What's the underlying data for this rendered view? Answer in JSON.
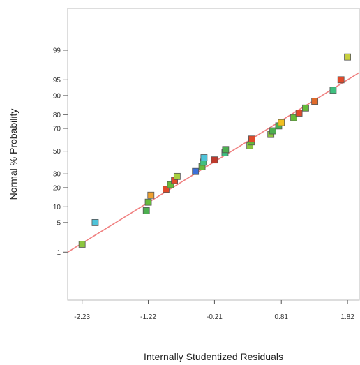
{
  "chart_data": {
    "type": "scatter",
    "title": "",
    "xlabel": "Internally Studentized Residuals",
    "ylabel": "Normal % Probability",
    "y_scale": "normal-probability",
    "grid": false,
    "xlim": [
      -2.45,
      2.0
    ],
    "ylim": [
      0.03,
      99.95
    ],
    "x_ticks": [
      -2.23,
      -1.22,
      -0.21,
      0.81,
      1.82
    ],
    "x_tick_labels": [
      "-2.23",
      "-1.22",
      "-0.21",
      "0.81",
      "1.82"
    ],
    "y_ticks": [
      1,
      5,
      10,
      20,
      30,
      50,
      70,
      80,
      90,
      95,
      99
    ],
    "y_tick_labels": [
      "1",
      "5",
      "10",
      "20",
      "30",
      "50",
      "70",
      "80",
      "90",
      "95",
      "99"
    ],
    "reference_line": {
      "color": "#f08080",
      "points": [
        [
          -2.45,
          1.0
        ],
        [
          2.0,
          96.5
        ]
      ]
    },
    "points": [
      {
        "x": -2.23,
        "y": 1.6,
        "color": "#8cc63f"
      },
      {
        "x": -2.03,
        "y": 5.0,
        "color": "#4fc3d9"
      },
      {
        "x": -1.25,
        "y": 8.5,
        "color": "#4caf50"
      },
      {
        "x": -1.22,
        "y": 12.0,
        "color": "#66bb3a"
      },
      {
        "x": -1.18,
        "y": 15.5,
        "color": "#f0a030"
      },
      {
        "x": -0.95,
        "y": 19.0,
        "color": "#e04a2a"
      },
      {
        "x": -0.88,
        "y": 22.0,
        "color": "#66bb3a"
      },
      {
        "x": -0.82,
        "y": 25.0,
        "color": "#e04a2a"
      },
      {
        "x": -0.78,
        "y": 28.0,
        "color": "#a8d040"
      },
      {
        "x": -0.5,
        "y": 32.0,
        "color": "#3b6fd8"
      },
      {
        "x": -0.4,
        "y": 36.0,
        "color": "#66bb3a"
      },
      {
        "x": -0.38,
        "y": 40.0,
        "color": "#40c080"
      },
      {
        "x": -0.37,
        "y": 44.0,
        "color": "#4fc3d9"
      },
      {
        "x": -0.21,
        "y": 42.0,
        "color": "#c0392b"
      },
      {
        "x": -0.05,
        "y": 48.5,
        "color": "#40c080"
      },
      {
        "x": -0.04,
        "y": 51.5,
        "color": "#4caf50"
      },
      {
        "x": 0.33,
        "y": 55.0,
        "color": "#8cc63f"
      },
      {
        "x": 0.35,
        "y": 58.5,
        "color": "#66bb3a"
      },
      {
        "x": 0.36,
        "y": 61.0,
        "color": "#e04a2a"
      },
      {
        "x": 0.65,
        "y": 65.0,
        "color": "#8cc63f"
      },
      {
        "x": 0.68,
        "y": 68.0,
        "color": "#4caf50"
      },
      {
        "x": 0.77,
        "y": 72.0,
        "color": "#4caf50"
      },
      {
        "x": 0.81,
        "y": 74.5,
        "color": "#f0c020"
      },
      {
        "x": 1.0,
        "y": 78.0,
        "color": "#66bb3a"
      },
      {
        "x": 1.08,
        "y": 81.0,
        "color": "#e04a2a"
      },
      {
        "x": 1.18,
        "y": 84.0,
        "color": "#66bb3a"
      },
      {
        "x": 1.32,
        "y": 87.5,
        "color": "#e06a2a"
      },
      {
        "x": 1.6,
        "y": 92.0,
        "color": "#40c080"
      },
      {
        "x": 1.72,
        "y": 95.0,
        "color": "#e04a2a"
      },
      {
        "x": 1.82,
        "y": 98.5,
        "color": "#c8d040"
      }
    ]
  }
}
